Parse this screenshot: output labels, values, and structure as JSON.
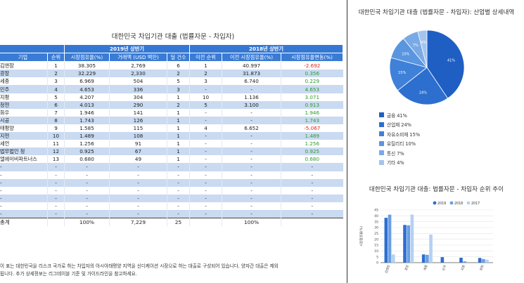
{
  "table": {
    "title": "대한민국 차입기관 대출 (법률자문 - 차입자)",
    "group_2019": "2019년 상반기",
    "group_2018": "2018년 상반기",
    "headers": [
      "기업",
      "순위",
      "시장점유율(%)",
      "거래액 (USD 백만)",
      "딜 건수",
      "이전 순위",
      "이전 시장점유율(%)",
      "시장점유율변동(%)"
    ],
    "rows": [
      [
        "김앤장",
        "1",
        "38.305",
        "2,769",
        "6",
        "1",
        "40.997",
        "-2.692"
      ],
      [
        "광장",
        "2",
        "32.229",
        "2,330",
        "2",
        "2",
        "31.873",
        "0.356"
      ],
      [
        "세종",
        "3",
        "6.969",
        "504",
        "5",
        "3",
        "6.740",
        "0.229"
      ],
      [
        "민주",
        "4",
        "4.653",
        "336",
        "3",
        "-",
        "-",
        "4.653"
      ],
      [
        "지평",
        "5",
        "4.207",
        "304",
        "1",
        "10",
        "1.136",
        "3.071"
      ],
      [
        "청현",
        "6",
        "4.013",
        "290",
        "2",
        "5",
        "3.100",
        "0.913"
      ],
      [
        "화우",
        "7",
        "1.946",
        "141",
        "1",
        "-",
        "-",
        "1.946"
      ],
      [
        "시공",
        "8",
        "1.743",
        "126",
        "1",
        "-",
        "-",
        "1.743"
      ],
      [
        "태평양",
        "9",
        "1.585",
        "115",
        "1",
        "4",
        "6.652",
        "-5.067"
      ],
      [
        "지현",
        "10",
        "1.489",
        "108",
        "1",
        "-",
        "-",
        "1.489"
      ],
      [
        "세언",
        "11",
        "1.256",
        "91",
        "1",
        "-",
        "-",
        "1.256"
      ],
      [
        "법무법인 청",
        "12",
        "0.925",
        "67",
        "1",
        "-",
        "-",
        "0.925"
      ],
      [
        "엘에이비파트너스",
        "13",
        "0.680",
        "49",
        "1",
        "-",
        "-",
        "0.680"
      ],
      [
        "-",
        "-",
        "-",
        "-",
        "-",
        "-",
        "-",
        "-"
      ],
      [
        "-",
        "-",
        "-",
        "-",
        "-",
        "-",
        "-",
        "-"
      ],
      [
        "-",
        "-",
        "-",
        "-",
        "-",
        "-",
        "-",
        "-"
      ],
      [
        "-",
        "-",
        "-",
        "-",
        "-",
        "-",
        "-",
        "-"
      ],
      [
        "-",
        "-",
        "-",
        "-",
        "-",
        "-",
        "-",
        "-"
      ],
      [
        "-",
        "-",
        "-",
        "-",
        "-",
        "-",
        "-",
        "-"
      ],
      [
        "-",
        "-",
        "-",
        "-",
        "-",
        "-",
        "-",
        "-"
      ]
    ],
    "total": [
      "총계",
      "",
      "100%",
      "7,229",
      "25",
      "",
      "100%",
      ""
    ],
    "note_line1": "이 표는 대한민국을 리스크 국가로 하는 차입자의 아시아태평양 지역을 신디케이션 시장으로 하는 대출로 구성되어 있습니다. 양자간 대출은 제외",
    "note_line2": "됩니다. 추가 상세정보는 리그테이블 기준 및 가이드라인을 참고하세요."
  },
  "colors": {
    "header_blue": "#3a7bd5",
    "stripe": "#c9daf1",
    "negative": "#e0241a",
    "positive": "#2e9b2e"
  },
  "chart_data": [
    {
      "type": "pie",
      "title": "대한민국 차입기관 대출 (법률자문 - 차입자): 산업별 상세내역",
      "slices": [
        {
          "label": "금융",
          "value": 41,
          "color": "#1f5fc4"
        },
        {
          "label": "산업재",
          "value": 24,
          "color": "#2c6fce"
        },
        {
          "label": "자유소비재",
          "value": 15,
          "color": "#3f81d9"
        },
        {
          "label": "유틸리티",
          "value": 10,
          "color": "#5a95e0"
        },
        {
          "label": "통신",
          "value": 7,
          "color": "#7aaae6"
        },
        {
          "label": "기타",
          "value": 4,
          "color": "#a3c4ef"
        }
      ],
      "legend_entries": [
        "금융 41%",
        "산업재 24%",
        "자유소비재 15%",
        "유틸리티 10%",
        "통신 7%",
        "기타 4%"
      ],
      "slice_labels": [
        "41%",
        "24%",
        "15%",
        "10%",
        "7%",
        "4%"
      ]
    },
    {
      "type": "bar",
      "title": "대한민국 차입기관 대출: 법률자문 - 차입자 순위 추이",
      "ylabel": "시장점유율(%)",
      "ylim": [
        0,
        45
      ],
      "yticks": [
        0,
        5,
        10,
        15,
        20,
        25,
        30,
        35,
        40,
        45
      ],
      "categories": [
        "김앤장",
        "광장",
        "세종",
        "민주",
        "지평",
        "청현"
      ],
      "series": [
        {
          "name": "2019",
          "color": "#2c6fce",
          "values": [
            38.3,
            32.2,
            7.0,
            4.7,
            4.2,
            4.0
          ]
        },
        {
          "name": "2018",
          "color": "#6a9fe3",
          "values": [
            41.0,
            31.9,
            6.7,
            0,
            1.1,
            3.1
          ]
        },
        {
          "name": "2017",
          "color": "#b5d0f2",
          "values": [
            7.0,
            41.0,
            24.0,
            0,
            0,
            2.5
          ]
        }
      ]
    }
  ]
}
